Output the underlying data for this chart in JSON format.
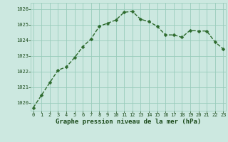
{
  "x": [
    0,
    1,
    2,
    3,
    4,
    5,
    6,
    7,
    8,
    9,
    10,
    11,
    12,
    13,
    14,
    15,
    16,
    17,
    18,
    19,
    20,
    21,
    22,
    23
  ],
  "y": [
    1019.7,
    1020.5,
    1021.3,
    1022.1,
    1022.3,
    1022.9,
    1023.6,
    1024.1,
    1024.9,
    1025.1,
    1025.3,
    1025.8,
    1025.85,
    1025.35,
    1025.2,
    1024.9,
    1024.35,
    1024.35,
    1024.2,
    1024.65,
    1024.6,
    1024.6,
    1023.9,
    1023.45
  ],
  "ylim": [
    1019.5,
    1026.4
  ],
  "yticks": [
    1020,
    1021,
    1022,
    1023,
    1024,
    1025,
    1026
  ],
  "xlim": [
    -0.3,
    23.3
  ],
  "xticks": [
    0,
    1,
    2,
    3,
    4,
    5,
    6,
    7,
    8,
    9,
    10,
    11,
    12,
    13,
    14,
    15,
    16,
    17,
    18,
    19,
    20,
    21,
    22,
    23
  ],
  "line_color": "#2d6a2d",
  "marker_color": "#2d6a2d",
  "bg_color": "#cce8e0",
  "grid_color": "#99ccbb",
  "xlabel": "Graphe pression niveau de la mer (hPa)",
  "xlabel_color": "#1a4a1a",
  "tick_label_color": "#1a4a1a",
  "marker_size": 2.5,
  "line_width": 1.0,
  "tick_fontsize": 5.0,
  "xlabel_fontsize": 6.5
}
